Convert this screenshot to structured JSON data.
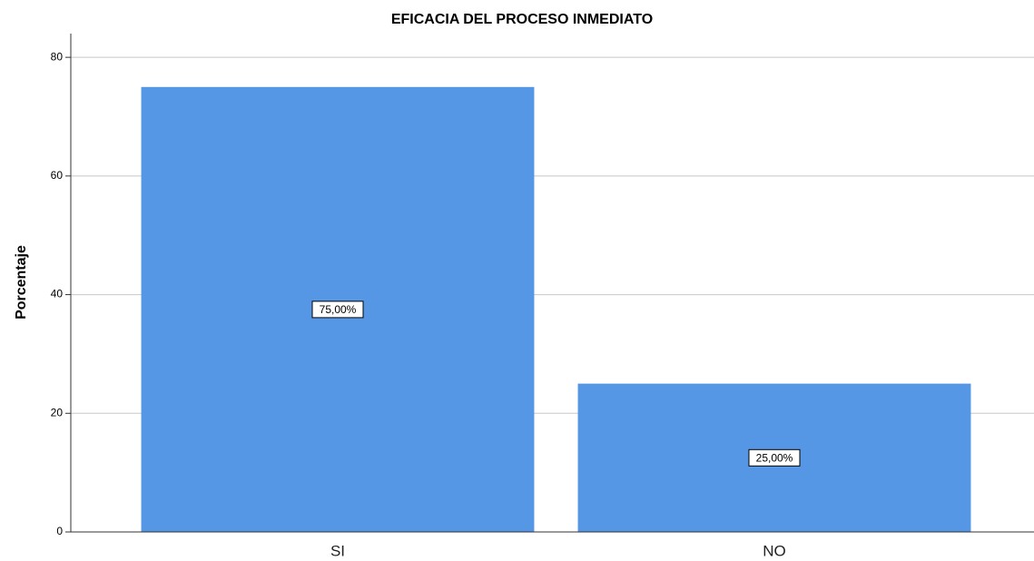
{
  "chart_data": {
    "type": "bar",
    "title": "EFICACIA DEL PROCESO INMEDIATO",
    "y_label": "Porcentaje",
    "categories": [
      "SI",
      "NO"
    ],
    "values": [
      75,
      25
    ],
    "value_labels": [
      "75,00%",
      "25,00%"
    ],
    "color": "#5596e5",
    "ylim": [
      0,
      84
    ],
    "yticks": [
      0,
      20,
      40,
      60,
      80
    ],
    "grid": true
  }
}
